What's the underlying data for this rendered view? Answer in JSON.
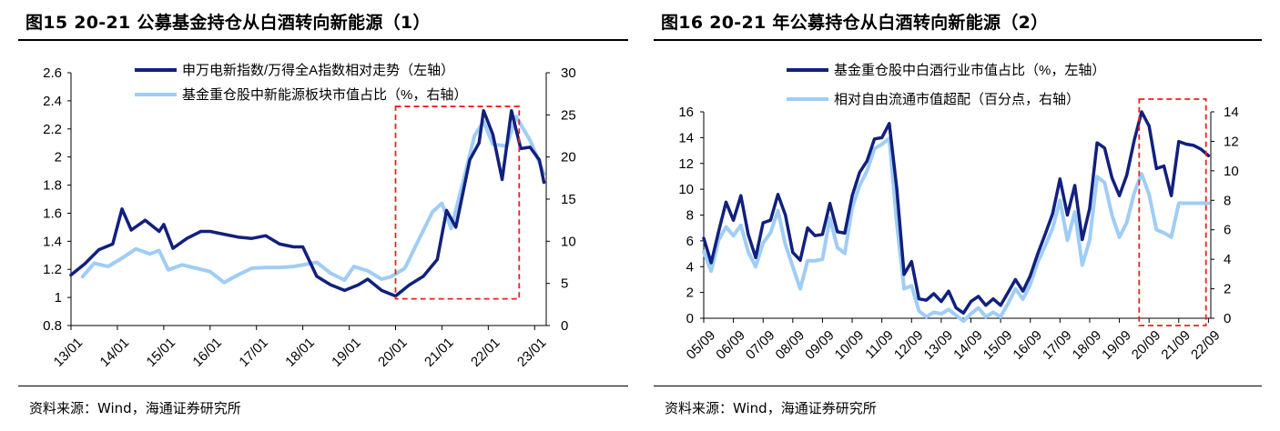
{
  "panels": {
    "left": {
      "title": "图15 20-21 公募基金持仓从白酒转向新能源（1）",
      "source": "资料来源：Wind，海通证券研究所"
    },
    "right": {
      "title": "图16 20-21 年公募持仓从白酒转向新能源（2）",
      "source": "资料来源：Wind，海通证券研究所"
    }
  },
  "colors": {
    "dark": "#11207e",
    "light": "#9fcdf5",
    "highlight": "#e8231f"
  },
  "chart_data": [
    {
      "type": "line",
      "x_ticks": [
        "13/01",
        "14/01",
        "15/01",
        "16/01",
        "17/01",
        "18/01",
        "19/01",
        "20/01",
        "21/01",
        "22/01",
        "23/01"
      ],
      "y_left_ticks": [
        "0.8",
        "1",
        "1.2",
        "1.4",
        "1.6",
        "1.8",
        "2",
        "2.2",
        "2.4",
        "2.6"
      ],
      "y_right_ticks": [
        "0",
        "5",
        "10",
        "15",
        "20",
        "25",
        "30"
      ],
      "ylim_left": [
        0.8,
        2.6
      ],
      "ylim_right": [
        0,
        30
      ],
      "legend_position": "top",
      "highlight_box": {
        "x_range": [
          "20/01",
          "22/09"
        ]
      },
      "series": [
        {
          "name": "申万电新指数/万得全A指数相对走势（左轴）",
          "axis": "left",
          "x": [
            2013.0,
            2013.3,
            2013.6,
            2013.9,
            2014.1,
            2014.3,
            2014.6,
            2014.9,
            2015.0,
            2015.2,
            2015.5,
            2015.8,
            2016.0,
            2016.3,
            2016.6,
            2016.9,
            2017.2,
            2017.5,
            2017.8,
            2018.0,
            2018.3,
            2018.6,
            2018.9,
            2019.2,
            2019.4,
            2019.7,
            2020.0,
            2020.3,
            2020.6,
            2020.9,
            2021.1,
            2021.3,
            2021.6,
            2021.8,
            2021.9,
            2022.1,
            2022.3,
            2022.5,
            2022.7,
            2022.9,
            2023.1,
            2023.2
          ],
          "y": [
            1.16,
            1.24,
            1.34,
            1.38,
            1.63,
            1.48,
            1.55,
            1.47,
            1.52,
            1.35,
            1.42,
            1.47,
            1.47,
            1.45,
            1.43,
            1.42,
            1.44,
            1.38,
            1.36,
            1.36,
            1.15,
            1.09,
            1.05,
            1.09,
            1.13,
            1.05,
            1.01,
            1.09,
            1.15,
            1.27,
            1.62,
            1.5,
            1.98,
            2.1,
            2.33,
            2.16,
            1.84,
            2.33,
            2.06,
            2.07,
            1.98,
            1.82
          ]
        },
        {
          "name": "基金重仓股中新能源板块市值占比（%，右轴）",
          "axis": "right",
          "x": [
            2013.25,
            2013.5,
            2013.8,
            2014.1,
            2014.4,
            2014.7,
            2014.9,
            2015.1,
            2015.4,
            2015.7,
            2016.0,
            2016.3,
            2016.6,
            2016.9,
            2017.2,
            2017.5,
            2017.8,
            2018.0,
            2018.3,
            2018.6,
            2018.9,
            2019.1,
            2019.4,
            2019.7,
            2019.9,
            2020.2,
            2020.5,
            2020.8,
            2021.0,
            2021.2,
            2021.5,
            2021.7,
            2021.9,
            2022.1,
            2022.4,
            2022.6,
            2022.9,
            2023.2
          ],
          "y": [
            5.8,
            7.4,
            7.0,
            8.0,
            9.1,
            8.5,
            8.9,
            6.6,
            7.2,
            6.8,
            6.4,
            5.1,
            6.0,
            6.8,
            6.9,
            6.9,
            7.0,
            7.2,
            7.5,
            6.2,
            5.4,
            7.0,
            6.5,
            5.5,
            5.8,
            6.8,
            10.2,
            13.5,
            14.5,
            11.5,
            18.0,
            22.5,
            24.2,
            21.5,
            21.3,
            24.8,
            22.0,
            18.0
          ]
        }
      ]
    },
    {
      "type": "line",
      "x_ticks": [
        "05/09",
        "06/09",
        "07/09",
        "08/09",
        "09/09",
        "10/09",
        "11/09",
        "12/09",
        "13/09",
        "14/09",
        "15/09",
        "16/09",
        "17/09",
        "18/09",
        "19/09",
        "20/09",
        "21/09",
        "22/09"
      ],
      "y_left_ticks": [
        "0",
        "2",
        "4",
        "6",
        "8",
        "10",
        "12",
        "14",
        "16"
      ],
      "y_right_ticks": [
        "0",
        "2",
        "4",
        "6",
        "8",
        "10",
        "12",
        "14"
      ],
      "ylim_left": [
        0,
        16
      ],
      "ylim_right": [
        0,
        14
      ],
      "legend_position": "top",
      "highlight_box": {
        "x_range": [
          "20/06",
          "22/09"
        ]
      },
      "series": [
        {
          "name": "基金重仓股中白酒行业市值占比（%，左轴）",
          "axis": "left",
          "x": [
            2005.75,
            2006.0,
            2006.25,
            2006.5,
            2006.75,
            2007.0,
            2007.25,
            2007.5,
            2007.75,
            2008.0,
            2008.25,
            2008.5,
            2008.75,
            2009.0,
            2009.25,
            2009.5,
            2009.75,
            2010.0,
            2010.25,
            2010.5,
            2010.75,
            2011.0,
            2011.25,
            2011.5,
            2011.75,
            2012.0,
            2012.25,
            2012.5,
            2012.75,
            2013.0,
            2013.25,
            2013.5,
            2013.75,
            2014.0,
            2014.25,
            2014.5,
            2014.75,
            2015.0,
            2015.25,
            2015.5,
            2015.75,
            2016.0,
            2016.25,
            2016.5,
            2016.75,
            2017.0,
            2017.25,
            2017.5,
            2017.75,
            2018.0,
            2018.25,
            2018.5,
            2018.75,
            2019.0,
            2019.25,
            2019.5,
            2019.75,
            2020.0,
            2020.25,
            2020.5,
            2020.75,
            2021.0,
            2021.25,
            2021.5,
            2021.75,
            2022.0,
            2022.25,
            2022.5,
            2022.75
          ],
          "y": [
            6.2,
            4.3,
            6.7,
            9.0,
            7.6,
            9.5,
            6.5,
            4.7,
            7.4,
            7.6,
            9.6,
            8.0,
            5.1,
            4.5,
            7.0,
            6.4,
            6.5,
            8.9,
            6.7,
            6.6,
            9.5,
            11.3,
            12.2,
            13.9,
            14.0,
            15.1,
            10.1,
            3.4,
            4.4,
            1.5,
            1.4,
            1.9,
            1.3,
            2.1,
            0.8,
            0.4,
            1.3,
            1.7,
            1.0,
            1.5,
            1.0,
            2.0,
            3.0,
            2.1,
            3.3,
            5.0,
            6.5,
            8.1,
            10.8,
            8.0,
            10.3,
            6.1,
            8.5,
            13.6,
            13.2,
            10.9,
            9.5,
            11.1,
            13.8,
            16.0,
            14.9,
            11.6,
            11.8,
            9.5,
            13.7,
            13.5,
            13.4,
            13.1,
            12.6
          ]
        },
        {
          "name": "相对自由流通市值超配（百分点，右轴）",
          "axis": "right",
          "x": [
            2005.75,
            2006.0,
            2006.25,
            2006.5,
            2006.75,
            2007.0,
            2007.25,
            2007.5,
            2007.75,
            2008.0,
            2008.25,
            2008.5,
            2008.75,
            2009.0,
            2009.25,
            2009.5,
            2009.75,
            2010.0,
            2010.25,
            2010.5,
            2010.75,
            2011.0,
            2011.25,
            2011.5,
            2011.75,
            2012.0,
            2012.25,
            2012.5,
            2012.75,
            2013.0,
            2013.25,
            2013.5,
            2013.75,
            2014.0,
            2014.25,
            2014.5,
            2014.75,
            2015.0,
            2015.25,
            2015.5,
            2015.75,
            2016.0,
            2016.25,
            2016.5,
            2016.75,
            2017.0,
            2017.25,
            2017.5,
            2017.75,
            2018.0,
            2018.25,
            2018.5,
            2018.75,
            2019.0,
            2019.25,
            2019.5,
            2019.75,
            2020.0,
            2020.25,
            2020.5,
            2020.75,
            2021.0,
            2021.25,
            2021.5,
            2021.75,
            2022.0,
            2022.25,
            2022.5,
            2022.75
          ],
          "y": [
            4.5,
            3.2,
            5.3,
            6.2,
            5.6,
            6.3,
            4.5,
            3.5,
            5.1,
            5.8,
            7.3,
            5.0,
            3.5,
            2.0,
            3.9,
            3.9,
            4.0,
            6.8,
            4.8,
            4.4,
            7.5,
            9.0,
            10.0,
            11.5,
            11.8,
            12.2,
            6.5,
            2.0,
            2.2,
            0.5,
            0.1,
            0.4,
            0.3,
            0.6,
            0.2,
            -0.2,
            0.3,
            0.7,
            0.1,
            0.4,
            0.1,
            1.0,
            2.0,
            1.3,
            2.3,
            3.8,
            4.9,
            6.1,
            8.0,
            5.3,
            7.2,
            3.6,
            5.3,
            9.6,
            9.2,
            7.0,
            5.5,
            6.5,
            8.5,
            9.8,
            8.4,
            6.0,
            5.8,
            5.5,
            7.8,
            7.8,
            7.8,
            7.8,
            7.8
          ]
        }
      ]
    }
  ]
}
